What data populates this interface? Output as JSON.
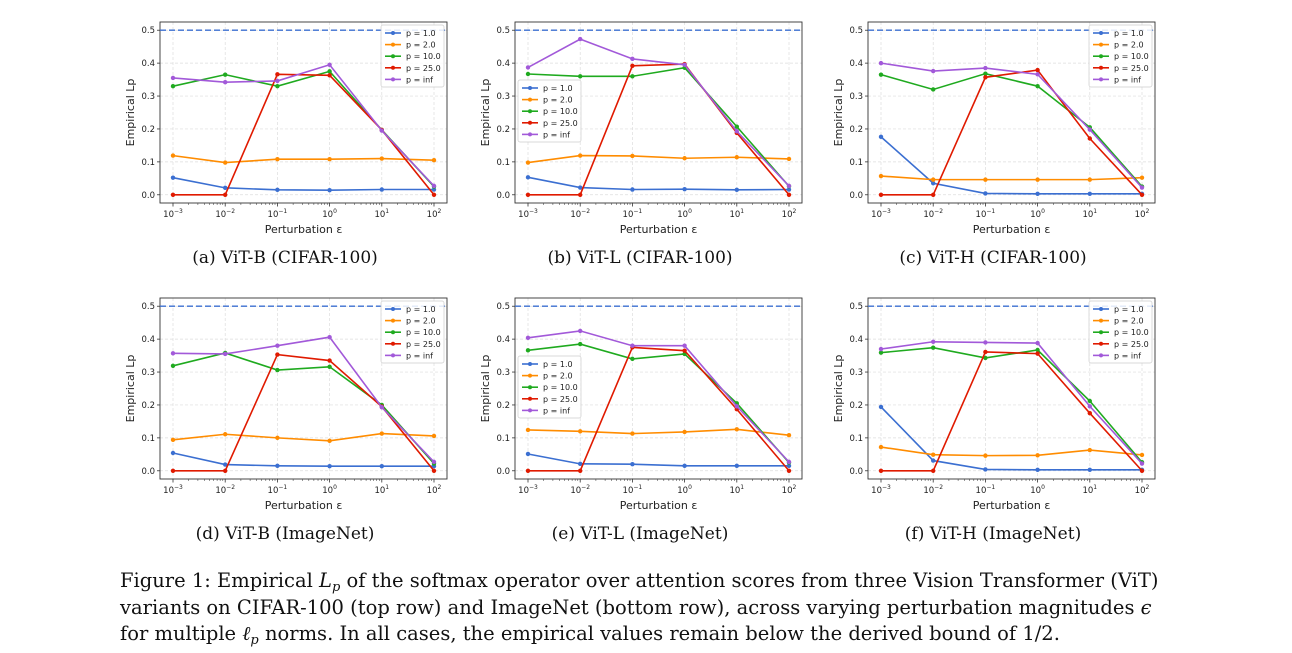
{
  "caption": {
    "prefix": "Figure 1: Empirical ",
    "L": "L",
    "p": "p",
    "mid1": " of the softmax operator over attention scores from three Vision Transformer (ViT) variants on CIFAR-100 (top row) and ImageNet (bottom row), across varying perturbation magnitudes ",
    "eps": "ϵ",
    "mid2": " for multiple ",
    "ell": "ℓ",
    "p2": "p",
    "suffix": " norms. In all cases, the empirical values remain below the derived bound of 1/2."
  },
  "colors": {
    "p = 1.0": "#3b6fd1",
    "p = 2.0": "#ff8c00",
    "p = 10.0": "#1faa1f",
    "p = 25.0": "#e01a00",
    "p = inf": "#a259d9",
    "bound": "#3b6fd1"
  },
  "chart_data": [
    {
      "type": "line",
      "subcaption": "(a) ViT-B (CIFAR-100)",
      "xlabel": "Perturbation ε",
      "ylabel": "Empirical Lp",
      "x": [
        0.001,
        0.01,
        0.1,
        1,
        10,
        100
      ],
      "x_scale": "log",
      "x_tick_base": "10",
      "x_tick_exponents": [
        "−3",
        "−2",
        "−1",
        "0",
        "1",
        "2"
      ],
      "y_ticks": [
        "0.0",
        "0.1",
        "0.2",
        "0.3",
        "0.4",
        "0.5"
      ],
      "ylim": [
        -0.025,
        0.525
      ],
      "grid": true,
      "legend": "top-right",
      "bound": 0.5,
      "series": [
        {
          "name": "p = 1.0",
          "values": [
            0.052,
            0.021,
            0.015,
            0.014,
            0.016,
            0.016
          ]
        },
        {
          "name": "p = 2.0",
          "values": [
            0.119,
            0.098,
            0.108,
            0.108,
            0.11,
            0.105
          ]
        },
        {
          "name": "p = 10.0",
          "values": [
            0.33,
            0.365,
            0.33,
            0.375,
            0.197,
            0.025
          ]
        },
        {
          "name": "p = 25.0",
          "values": [
            0,
            0,
            0.366,
            0.363,
            0.197,
            0
          ]
        },
        {
          "name": "p = inf",
          "values": [
            0.355,
            0.342,
            0.346,
            0.395,
            0.195,
            0.027
          ]
        }
      ]
    },
    {
      "type": "line",
      "subcaption": "(b) ViT-L (CIFAR-100)",
      "xlabel": "Perturbation ε",
      "ylabel": "Empirical Lp",
      "x": [
        0.001,
        0.01,
        0.1,
        1,
        10,
        100
      ],
      "x_scale": "log",
      "x_tick_base": "10",
      "x_tick_exponents": [
        "−3",
        "−2",
        "−1",
        "0",
        "1",
        "2"
      ],
      "y_ticks": [
        "0.0",
        "0.1",
        "0.2",
        "0.3",
        "0.4",
        "0.5"
      ],
      "ylim": [
        -0.025,
        0.525
      ],
      "grid": true,
      "legend": "center-left",
      "bound": 0.5,
      "series": [
        {
          "name": "p = 1.0",
          "values": [
            0.053,
            0.022,
            0.016,
            0.017,
            0.015,
            0.016
          ]
        },
        {
          "name": "p = 2.0",
          "values": [
            0.098,
            0.119,
            0.118,
            0.111,
            0.114,
            0.109
          ]
        },
        {
          "name": "p = 10.0",
          "values": [
            0.367,
            0.36,
            0.36,
            0.386,
            0.207,
            0.026
          ]
        },
        {
          "name": "p = 25.0",
          "values": [
            0,
            0,
            0.392,
            0.397,
            0.188,
            0
          ]
        },
        {
          "name": "p = inf",
          "values": [
            0.387,
            0.473,
            0.413,
            0.395,
            0.193,
            0.027
          ]
        }
      ]
    },
    {
      "type": "line",
      "subcaption": "(c) ViT-H (CIFAR-100)",
      "xlabel": "Perturbation ε",
      "ylabel": "Empirical Lp",
      "x": [
        0.001,
        0.01,
        0.1,
        1,
        10,
        100
      ],
      "x_scale": "log",
      "x_tick_base": "10",
      "x_tick_exponents": [
        "−3",
        "−2",
        "−1",
        "0",
        "1",
        "2"
      ],
      "y_ticks": [
        "0.0",
        "0.1",
        "0.2",
        "0.3",
        "0.4",
        "0.5"
      ],
      "ylim": [
        -0.025,
        0.525
      ],
      "grid": true,
      "legend": "top-right",
      "bound": 0.5,
      "series": [
        {
          "name": "p = 1.0",
          "values": [
            0.176,
            0.035,
            0.004,
            0.003,
            0.003,
            0.003
          ]
        },
        {
          "name": "p = 2.0",
          "values": [
            0.057,
            0.046,
            0.046,
            0.046,
            0.046,
            0.052
          ]
        },
        {
          "name": "p = 10.0",
          "values": [
            0.365,
            0.32,
            0.368,
            0.33,
            0.205,
            0.025
          ]
        },
        {
          "name": "p = 25.0",
          "values": [
            0,
            0,
            0.357,
            0.379,
            0.171,
            0
          ]
        },
        {
          "name": "p = inf",
          "values": [
            0.4,
            0.376,
            0.385,
            0.366,
            0.198,
            0.022
          ]
        }
      ]
    },
    {
      "type": "line",
      "subcaption": "(d) ViT-B (ImageNet)",
      "xlabel": "Perturbation ε",
      "ylabel": "Empirical Lp",
      "x": [
        0.001,
        0.01,
        0.1,
        1,
        10,
        100
      ],
      "x_scale": "log",
      "x_tick_base": "10",
      "x_tick_exponents": [
        "−3",
        "−2",
        "−1",
        "0",
        "1",
        "2"
      ],
      "y_ticks": [
        "0.0",
        "0.1",
        "0.2",
        "0.3",
        "0.4",
        "0.5"
      ],
      "ylim": [
        -0.025,
        0.525
      ],
      "grid": true,
      "legend": "top-right",
      "bound": 0.5,
      "series": [
        {
          "name": "p = 1.0",
          "values": [
            0.054,
            0.019,
            0.015,
            0.014,
            0.014,
            0.014
          ]
        },
        {
          "name": "p = 2.0",
          "values": [
            0.094,
            0.111,
            0.1,
            0.091,
            0.113,
            0.106
          ]
        },
        {
          "name": "p = 10.0",
          "values": [
            0.319,
            0.358,
            0.306,
            0.316,
            0.2,
            0.022
          ]
        },
        {
          "name": "p = 25.0",
          "values": [
            0,
            0,
            0.353,
            0.335,
            0.195,
            0
          ]
        },
        {
          "name": "p = inf",
          "values": [
            0.357,
            0.355,
            0.38,
            0.406,
            0.193,
            0.027
          ]
        }
      ]
    },
    {
      "type": "line",
      "subcaption": "(e) ViT-L (ImageNet)",
      "xlabel": "Perturbation ε",
      "ylabel": "Empirical Lp",
      "x": [
        0.001,
        0.01,
        0.1,
        1,
        10,
        100
      ],
      "x_scale": "log",
      "x_tick_base": "10",
      "x_tick_exponents": [
        "−3",
        "−2",
        "−1",
        "0",
        "1",
        "2"
      ],
      "y_ticks": [
        "0.0",
        "0.1",
        "0.2",
        "0.3",
        "0.4",
        "0.5"
      ],
      "ylim": [
        -0.025,
        0.525
      ],
      "grid": true,
      "legend": "center-left",
      "bound": 0.5,
      "series": [
        {
          "name": "p = 1.0",
          "values": [
            0.051,
            0.021,
            0.02,
            0.015,
            0.015,
            0.015
          ]
        },
        {
          "name": "p = 2.0",
          "values": [
            0.124,
            0.12,
            0.113,
            0.118,
            0.126,
            0.108
          ]
        },
        {
          "name": "p = 10.0",
          "values": [
            0.366,
            0.385,
            0.34,
            0.355,
            0.205,
            0.025
          ]
        },
        {
          "name": "p = 25.0",
          "values": [
            0,
            0,
            0.375,
            0.365,
            0.187,
            0
          ]
        },
        {
          "name": "p = inf",
          "values": [
            0.404,
            0.425,
            0.38,
            0.38,
            0.196,
            0.027
          ]
        }
      ]
    },
    {
      "type": "line",
      "subcaption": "(f) ViT-H (ImageNet)",
      "xlabel": "Perturbation ε",
      "ylabel": "Empirical Lp",
      "x": [
        0.001,
        0.01,
        0.1,
        1,
        10,
        100
      ],
      "x_scale": "log",
      "x_tick_base": "10",
      "x_tick_exponents": [
        "−3",
        "−2",
        "−1",
        "0",
        "1",
        "2"
      ],
      "y_ticks": [
        "0.0",
        "0.1",
        "0.2",
        "0.3",
        "0.4",
        "0.5"
      ],
      "ylim": [
        -0.025,
        0.525
      ],
      "grid": true,
      "legend": "top-right",
      "bound": 0.5,
      "series": [
        {
          "name": "p = 1.0",
          "values": [
            0.194,
            0.031,
            0.004,
            0.003,
            0.003,
            0.003
          ]
        },
        {
          "name": "p = 2.0",
          "values": [
            0.072,
            0.049,
            0.046,
            0.047,
            0.063,
            0.048
          ]
        },
        {
          "name": "p = 10.0",
          "values": [
            0.359,
            0.374,
            0.343,
            0.367,
            0.212,
            0.026
          ]
        },
        {
          "name": "p = 25.0",
          "values": [
            0,
            0,
            0.361,
            0.356,
            0.175,
            0
          ]
        },
        {
          "name": "p = inf",
          "values": [
            0.37,
            0.392,
            0.39,
            0.388,
            0.196,
            0.022
          ]
        }
      ]
    }
  ]
}
